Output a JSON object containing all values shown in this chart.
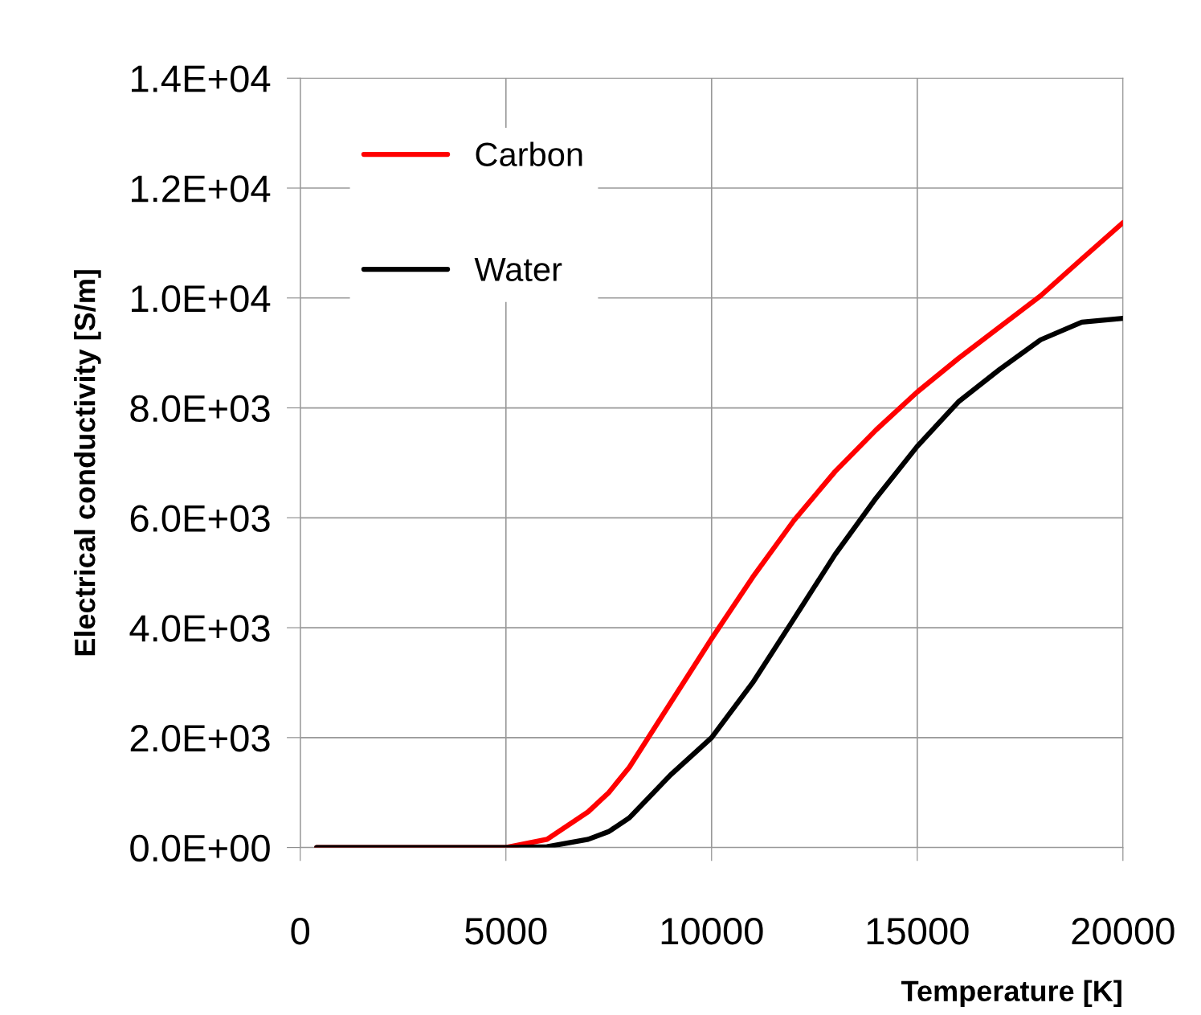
{
  "chart_data": {
    "type": "line",
    "xlabel": "Temperature [K]",
    "ylabel": "Electrical conductivity [S/m]",
    "x": [
      400,
      5000,
      6000,
      7000,
      7500,
      8000,
      9000,
      10000,
      11000,
      12000,
      13000,
      14000,
      15000,
      16000,
      17000,
      18000,
      19000,
      20000
    ],
    "series": [
      {
        "name": "Carbon",
        "color": "#ff0000",
        "values": [
          0,
          0,
          150,
          650,
          1000,
          1460,
          2630,
          3800,
          4920,
          5950,
          6840,
          7600,
          8290,
          8900,
          9470,
          10040,
          10710,
          11370
        ]
      },
      {
        "name": "Water",
        "color": "#000000",
        "values": [
          0,
          0,
          15,
          150,
          290,
          540,
          1320,
          2000,
          3000,
          4160,
          5330,
          6360,
          7300,
          8110,
          8700,
          9240,
          9560,
          9630
        ]
      }
    ],
    "xlim": [
      0,
      20000
    ],
    "xticks": [
      0,
      5000,
      10000,
      15000,
      20000
    ],
    "ylim": [
      0,
      14000
    ],
    "yticks": [
      {
        "value": 0,
        "label": "0.0E+00"
      },
      {
        "value": 2000,
        "label": "2.0E+03"
      },
      {
        "value": 4000,
        "label": "4.0E+03"
      },
      {
        "value": 6000,
        "label": "6.0E+03"
      },
      {
        "value": 8000,
        "label": "8.0E+03"
      },
      {
        "value": 10000,
        "label": "1.0E+04"
      },
      {
        "value": 12000,
        "label": "1.2E+04"
      },
      {
        "value": 14000,
        "label": "1.4E+04"
      }
    ],
    "grid": true,
    "legend": "top left",
    "marker": "none",
    "line_style": "solid"
  }
}
